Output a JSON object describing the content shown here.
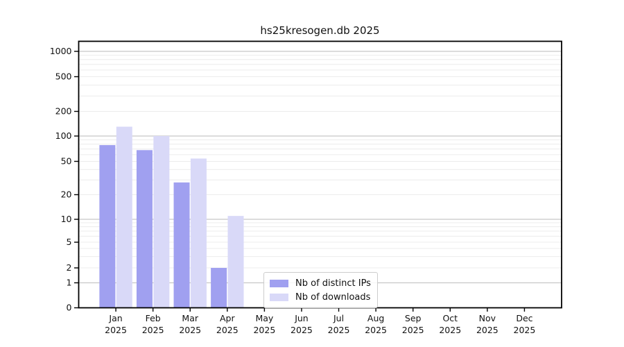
{
  "chart_data": {
    "type": "bar",
    "title": "hs25kresogen.db 2025",
    "categories": [
      "Jan",
      "Feb",
      "Mar",
      "Apr",
      "May",
      "Jun",
      "Jul",
      "Aug",
      "Sep",
      "Oct",
      "Nov",
      "Dec"
    ],
    "x_tick_year": "2025",
    "series": [
      {
        "name": "Nb of distinct IPs",
        "color": "#a0a0f0",
        "values": [
          78,
          68,
          28,
          2,
          0,
          0,
          0,
          0,
          0,
          0,
          0,
          0
        ]
      },
      {
        "name": "Nb of downloads",
        "color": "#d9d9f8",
        "values": [
          130,
          100,
          54,
          11,
          0,
          0,
          0,
          0,
          0,
          0,
          0,
          0
        ]
      }
    ],
    "y_ticks": [
      1000,
      500,
      200,
      100,
      50,
      20,
      10,
      5,
      2,
      1,
      0
    ],
    "y_scale": "symlog (log 1..1000, linear 0..1)",
    "ylim": [
      0,
      1300
    ],
    "xlabel": "",
    "ylabel": "",
    "grid": true,
    "legend_position": "lower center"
  },
  "colors": {
    "background": "#ffffff",
    "axis": "#000000",
    "text": "#111111",
    "major_grid": "#c8c8c8",
    "minor_grid": "#ececec"
  }
}
